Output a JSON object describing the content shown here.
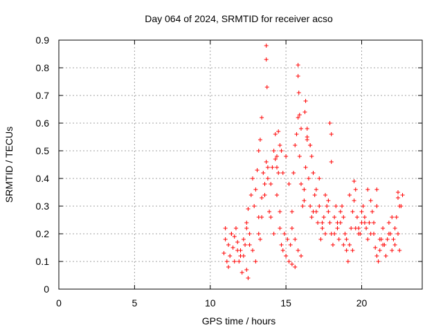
{
  "chart_data": {
    "type": "scatter",
    "title": "Day 064 of 2024, SRMTID for receiver acso",
    "xlabel": "GPS time / hours",
    "ylabel": "SRMTID / TECUs",
    "xlim": [
      0,
      24
    ],
    "ylim": [
      0,
      0.9
    ],
    "xticks": [
      0,
      5,
      10,
      15,
      20
    ],
    "yticks": [
      0,
      0.1,
      0.2,
      0.3,
      0.4,
      0.5,
      0.6,
      0.7,
      0.8,
      0.9
    ],
    "ytick_labels": [
      "0",
      "0.1",
      "0.2",
      "0.3",
      "0.4",
      "0.5",
      "0.6",
      "0.7",
      "0.8",
      "0.9"
    ],
    "grid": true,
    "marker": "plus",
    "color": "#ff0000",
    "x": [
      10.9,
      11.0,
      11.1,
      11.2,
      11.3,
      11.4,
      11.5,
      11.6,
      11.7,
      11.8,
      11.9,
      12.0,
      12.1,
      12.2,
      12.3,
      12.4,
      12.5,
      12.6,
      12.7,
      12.8,
      12.9,
      13.0,
      13.1,
      13.2,
      13.3,
      13.4,
      13.5,
      13.6,
      13.7,
      13.8,
      13.9,
      14.0,
      14.1,
      14.2,
      14.3,
      14.4,
      14.5,
      14.6,
      14.7,
      14.8,
      14.9,
      15.0,
      15.1,
      15.2,
      15.3,
      15.4,
      15.5,
      15.6,
      15.7,
      15.8,
      15.9,
      16.0,
      16.1,
      16.2,
      16.3,
      16.4,
      16.5,
      16.6,
      16.7,
      16.8,
      16.9,
      17.0,
      17.1,
      17.2,
      17.3,
      17.4,
      17.5,
      17.6,
      17.7,
      17.8,
      17.9,
      18.0,
      18.1,
      18.2,
      18.3,
      18.4,
      18.5,
      18.6,
      18.7,
      18.8,
      18.9,
      19.0,
      19.1,
      19.2,
      19.3,
      19.4,
      19.5,
      19.6,
      19.7,
      19.8,
      19.9,
      20.0,
      20.1,
      20.2,
      20.3,
      20.4,
      20.5,
      20.6,
      20.7,
      20.8,
      20.9,
      21.0,
      21.1,
      21.2,
      21.3,
      21.4,
      21.5,
      21.6,
      21.7,
      21.8,
      21.9,
      22.0,
      22.1,
      22.2,
      22.3,
      22.4,
      22.5,
      22.6,
      22.7,
      11.0,
      11.2,
      11.4,
      11.6,
      11.8,
      12.0,
      12.2,
      12.4,
      12.6,
      12.8,
      13.0,
      13.2,
      13.4,
      13.6,
      13.8,
      14.0,
      14.2,
      14.4,
      14.6,
      14.8,
      15.0,
      15.2,
      15.4,
      15.6,
      15.8,
      16.0,
      16.2,
      16.4,
      16.6,
      16.8,
      17.0,
      17.2,
      17.4,
      17.6,
      17.8,
      18.0,
      18.2,
      18.4,
      18.6,
      18.8,
      19.0,
      19.2,
      19.4,
      19.6,
      19.8,
      20.0,
      20.2,
      20.4,
      20.6,
      20.8,
      21.0,
      21.2,
      21.4,
      21.6,
      21.8,
      22.0,
      22.2,
      22.4,
      13.7,
      13.7,
      13.75,
      15.8,
      15.8,
      15.85,
      15.9,
      16.3,
      16.25,
      16.4,
      14.5,
      14.6,
      14.7,
      17.9,
      18.0,
      13.4,
      13.3,
      14.3,
      14.4,
      13.2,
      16.0,
      16.6,
      16.7,
      19.5,
      21.0,
      22.4,
      22.5,
      12.4,
      12.5,
      15.6,
      15.4
    ],
    "y": [
      0.13,
      0.18,
      0.1,
      0.08,
      0.12,
      0.2,
      0.15,
      0.19,
      0.22,
      0.17,
      0.1,
      0.14,
      0.06,
      0.12,
      0.16,
      0.24,
      0.29,
      0.2,
      0.34,
      0.4,
      0.3,
      0.36,
      0.43,
      0.26,
      0.18,
      0.33,
      0.42,
      0.38,
      0.46,
      0.4,
      0.28,
      0.38,
      0.44,
      0.5,
      0.56,
      0.48,
      0.42,
      0.22,
      0.16,
      0.14,
      0.2,
      0.12,
      0.18,
      0.1,
      0.16,
      0.22,
      0.42,
      0.52,
      0.56,
      0.62,
      0.48,
      0.38,
      0.3,
      0.36,
      0.44,
      0.54,
      0.4,
      0.3,
      0.26,
      0.42,
      0.34,
      0.28,
      0.24,
      0.3,
      0.18,
      0.22,
      0.26,
      0.34,
      0.3,
      0.28,
      0.24,
      0.2,
      0.16,
      0.26,
      0.3,
      0.22,
      0.18,
      0.24,
      0.3,
      0.26,
      0.2,
      0.14,
      0.1,
      0.16,
      0.22,
      0.28,
      0.32,
      0.36,
      0.26,
      0.22,
      0.2,
      0.24,
      0.3,
      0.26,
      0.22,
      0.18,
      0.24,
      0.32,
      0.28,
      0.2,
      0.15,
      0.12,
      0.1,
      0.14,
      0.18,
      0.22,
      0.16,
      0.12,
      0.18,
      0.24,
      0.2,
      0.14,
      0.18,
      0.22,
      0.26,
      0.2,
      0.14,
      0.3,
      0.34,
      0.22,
      0.16,
      0.2,
      0.1,
      0.14,
      0.12,
      0.18,
      0.22,
      0.16,
      0.14,
      0.1,
      0.2,
      0.26,
      0.34,
      0.44,
      0.26,
      0.2,
      0.34,
      0.28,
      0.42,
      0.48,
      0.38,
      0.28,
      0.18,
      0.14,
      0.12,
      0.32,
      0.58,
      0.52,
      0.28,
      0.36,
      0.4,
      0.24,
      0.2,
      0.32,
      0.46,
      0.2,
      0.24,
      0.28,
      0.16,
      0.18,
      0.34,
      0.14,
      0.22,
      0.2,
      0.28,
      0.24,
      0.36,
      0.2,
      0.24,
      0.3,
      0.18,
      0.16,
      0.12,
      0.2,
      0.26,
      0.16,
      0.33,
      0.88,
      0.83,
      0.73,
      0.81,
      0.77,
      0.71,
      0.63,
      0.68,
      0.64,
      0.55,
      0.57,
      0.52,
      0.5,
      0.6,
      0.56,
      0.62,
      0.54,
      0.47,
      0.44,
      0.5,
      0.58,
      0.52,
      0.48,
      0.39,
      0.36,
      0.35,
      0.3,
      0.07,
      0.04,
      0.08,
      0.09
    ]
  }
}
